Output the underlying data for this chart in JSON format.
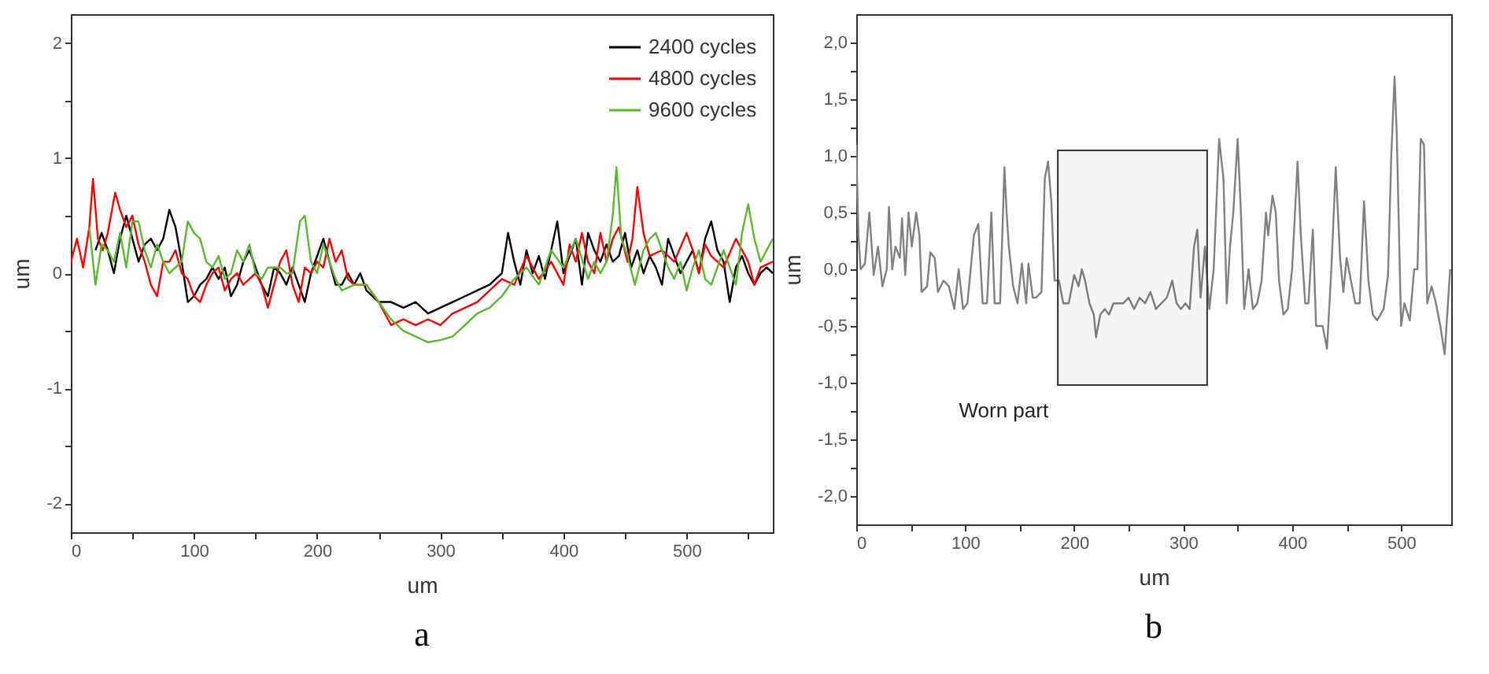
{
  "chart_data": [
    {
      "type": "line",
      "title": "a",
      "xlabel": "um",
      "ylabel": "um",
      "xlim": [
        0,
        570
      ],
      "ylim": [
        -2.25,
        2.25
      ],
      "xticks": [
        0,
        {
          "value": 50,
          "label": null
        },
        100,
        {
          "value": 150,
          "label": null
        },
        200,
        {
          "value": 250,
          "label": null
        },
        300,
        {
          "value": 350,
          "label": null
        },
        400,
        {
          "value": 450,
          "label": null
        },
        500,
        {
          "value": 550,
          "label": null
        }
      ],
      "yticks": [
        -2,
        {
          "value": -1.5,
          "label": null
        },
        -1,
        {
          "value": -0.5,
          "label": null
        },
        0,
        {
          "value": 0.5,
          "label": null
        },
        1,
        {
          "value": 1.5,
          "label": null
        },
        2
      ],
      "legend": "top right",
      "grid": false,
      "marker": "none",
      "line_style": "solid",
      "series": [
        {
          "name": "2400 cycles",
          "color": "#000000",
          "x": [
            20,
            25,
            30,
            35,
            40,
            45,
            50,
            55,
            60,
            65,
            70,
            75,
            80,
            85,
            90,
            95,
            100,
            105,
            110,
            115,
            120,
            125,
            130,
            135,
            140,
            145,
            150,
            155,
            160,
            165,
            170,
            175,
            180,
            185,
            190,
            195,
            200,
            205,
            210,
            215,
            220,
            225,
            230,
            235,
            240,
            250,
            260,
            270,
            280,
            290,
            300,
            310,
            320,
            330,
            340,
            350,
            355,
            360,
            365,
            370,
            375,
            380,
            385,
            390,
            395,
            400,
            405,
            410,
            415,
            420,
            425,
            430,
            435,
            440,
            445,
            450,
            455,
            460,
            465,
            470,
            475,
            480,
            485,
            490,
            495,
            500,
            505,
            510,
            515,
            520,
            525,
            530,
            535,
            540,
            545,
            550,
            555,
            560,
            565,
            570
          ],
          "values": [
            0.2,
            0.35,
            0.2,
            0.0,
            0.3,
            0.5,
            0.3,
            0.1,
            0.25,
            0.3,
            0.2,
            0.3,
            0.55,
            0.4,
            0.1,
            -0.25,
            -0.2,
            -0.1,
            -0.05,
            0.05,
            -0.05,
            0.05,
            -0.2,
            -0.1,
            0.1,
            0.2,
            0.05,
            -0.1,
            -0.2,
            0.05,
            0.0,
            -0.1,
            0.05,
            -0.1,
            -0.25,
            0.0,
            0.15,
            0.3,
            0.1,
            -0.1,
            -0.1,
            0.0,
            -0.1,
            0.0,
            -0.15,
            -0.25,
            -0.25,
            -0.3,
            -0.25,
            -0.35,
            -0.3,
            -0.25,
            -0.2,
            -0.15,
            -0.1,
            0.0,
            0.35,
            0.1,
            -0.1,
            0.2,
            0.0,
            0.15,
            -0.05,
            0.2,
            0.45,
            0.0,
            0.15,
            0.3,
            -0.1,
            0.35,
            0.2,
            0.1,
            0.25,
            0.1,
            0.15,
            0.35,
            0.05,
            0.2,
            0.0,
            0.15,
            0.05,
            -0.1,
            0.3,
            0.15,
            0.0,
            0.1,
            0.2,
            0.0,
            0.3,
            0.45,
            0.2,
            0.1,
            -0.25,
            0.05,
            0.15,
            0.0,
            -0.1,
            0.0,
            0.05,
            0.0
          ]
        },
        {
          "name": "4800 cycles",
          "color": "#ff0000",
          "x": [
            0,
            5,
            10,
            15,
            18,
            22,
            26,
            30,
            36,
            40,
            45,
            50,
            55,
            60,
            65,
            70,
            75,
            80,
            85,
            90,
            95,
            100,
            105,
            110,
            115,
            120,
            125,
            130,
            135,
            140,
            150,
            155,
            160,
            165,
            170,
            175,
            180,
            185,
            190,
            195,
            200,
            205,
            210,
            215,
            220,
            225,
            230,
            240,
            250,
            260,
            270,
            280,
            290,
            300,
            310,
            320,
            330,
            340,
            350,
            360,
            370,
            380,
            390,
            400,
            405,
            410,
            415,
            420,
            425,
            430,
            435,
            440,
            445,
            452,
            456,
            460,
            465,
            470,
            480,
            490,
            500,
            505,
            510,
            515,
            520,
            530,
            540,
            550,
            555,
            560,
            570
          ],
          "values": [
            0.1,
            0.3,
            0.05,
            0.4,
            0.82,
            0.3,
            0.2,
            0.35,
            0.7,
            0.55,
            0.4,
            0.5,
            0.25,
            0.1,
            -0.1,
            -0.2,
            0.1,
            0.1,
            0.2,
            0.0,
            -0.05,
            -0.2,
            -0.25,
            -0.1,
            0.0,
            0.05,
            -0.15,
            -0.05,
            0.0,
            -0.1,
            0.0,
            -0.1,
            -0.3,
            -0.1,
            0.1,
            0.2,
            -0.1,
            -0.25,
            0.05,
            0.0,
            0.1,
            0.05,
            0.3,
            0.1,
            0.2,
            -0.05,
            -0.1,
            -0.1,
            -0.25,
            -0.45,
            -0.4,
            -0.45,
            -0.4,
            -0.45,
            -0.35,
            -0.3,
            -0.25,
            -0.15,
            -0.05,
            -0.1,
            0.15,
            -0.05,
            0.1,
            -0.1,
            0.25,
            0.1,
            0.35,
            0.1,
            0.0,
            0.35,
            0.1,
            0.3,
            0.4,
            0.1,
            0.3,
            0.75,
            0.35,
            0.15,
            0.2,
            0.1,
            0.35,
            0.2,
            0.0,
            0.25,
            0.15,
            0.05,
            0.3,
            0.1,
            -0.1,
            0.05,
            0.1
          ]
        },
        {
          "name": "9600 cycles",
          "color": "#5cb82e",
          "x": [
            15,
            20,
            25,
            30,
            35,
            40,
            45,
            50,
            55,
            60,
            65,
            70,
            75,
            80,
            90,
            95,
            100,
            105,
            110,
            115,
            120,
            125,
            130,
            135,
            140,
            145,
            150,
            155,
            160,
            170,
            175,
            180,
            186,
            190,
            195,
            200,
            205,
            210,
            215,
            220,
            230,
            240,
            250,
            260,
            270,
            280,
            290,
            300,
            310,
            320,
            330,
            340,
            350,
            360,
            370,
            380,
            390,
            400,
            410,
            420,
            425,
            430,
            435,
            440,
            443,
            447,
            452,
            458,
            465,
            470,
            475,
            480,
            485,
            490,
            495,
            500,
            505,
            510,
            515,
            520,
            525,
            530,
            535,
            540,
            545,
            550,
            555,
            560,
            565,
            570
          ],
          "values": [
            0.4,
            -0.1,
            0.25,
            0.2,
            0.1,
            0.35,
            0.05,
            0.45,
            0.45,
            0.2,
            0.05,
            0.25,
            0.1,
            0.0,
            0.1,
            0.45,
            0.35,
            0.3,
            0.1,
            0.05,
            0.15,
            -0.05,
            0.0,
            0.2,
            0.1,
            0.25,
            0.0,
            -0.05,
            0.05,
            0.05,
            0.0,
            0.0,
            0.45,
            0.5,
            0.1,
            0.0,
            0.25,
            0.1,
            -0.05,
            -0.15,
            -0.1,
            -0.1,
            -0.25,
            -0.4,
            -0.5,
            -0.55,
            -0.6,
            -0.58,
            -0.55,
            -0.45,
            -0.35,
            -0.3,
            -0.2,
            -0.05,
            0.05,
            -0.1,
            0.2,
            0.05,
            0.3,
            -0.05,
            0.1,
            0.0,
            0.1,
            0.5,
            0.92,
            0.3,
            0.15,
            -0.1,
            0.2,
            0.3,
            0.35,
            0.2,
            0.05,
            -0.05,
            0.1,
            -0.15,
            0.05,
            0.2,
            -0.05,
            -0.1,
            0.05,
            0.2,
            0.05,
            -0.1,
            0.35,
            0.6,
            0.3,
            0.1,
            0.2,
            0.3
          ]
        }
      ]
    },
    {
      "type": "line",
      "title": "b",
      "xlabel": "um",
      "ylabel": "um",
      "xlim": [
        0,
        546
      ],
      "ylim": [
        -2.25,
        2.25
      ],
      "xticks": [
        0,
        {
          "value": 50,
          "label": null
        },
        100,
        {
          "value": 150,
          "label": null
        },
        200,
        {
          "value": 250,
          "label": null
        },
        300,
        {
          "value": 350,
          "label": null
        },
        400,
        {
          "value": 450,
          "label": null
        },
        500
      ],
      "yticks": [
        {
          "value": -2,
          "label": "-2,0"
        },
        {
          "value": -1.75,
          "label": null
        },
        {
          "value": -1.5,
          "label": "-1,5"
        },
        {
          "value": -1.25,
          "label": null
        },
        {
          "value": -1,
          "label": "-1,0"
        },
        {
          "value": -0.75,
          "label": null
        },
        {
          "value": -0.5,
          "label": "-0,5"
        },
        {
          "value": -0.25,
          "label": null
        },
        {
          "value": 0,
          "label": "0,0"
        },
        {
          "value": 0.25,
          "label": null
        },
        {
          "value": 0.5,
          "label": "0,5"
        },
        {
          "value": 0.75,
          "label": null
        },
        {
          "value": 1,
          "label": "1,0"
        },
        {
          "value": 1.25,
          "label": null
        },
        {
          "value": 1.5,
          "label": "1,5"
        },
        {
          "value": 1.75,
          "label": null
        },
        {
          "value": 2,
          "label": "2,0"
        }
      ],
      "grid": false,
      "marker": "none",
      "line_style": "solid",
      "bands": [
        {
          "axis": "x",
          "from": 185,
          "to": 322,
          "label": "Worn part",
          "color": "#333333"
        }
      ],
      "series": [
        {
          "color": "#808080",
          "x": [
            0,
            2,
            4,
            8,
            12,
            16,
            20,
            24,
            28,
            30,
            33,
            36,
            40,
            42,
            45,
            48,
            51,
            55,
            58,
            60,
            65,
            68,
            72,
            75,
            80,
            85,
            90,
            94,
            98,
            102,
            108,
            112,
            116,
            120,
            124,
            127,
            132,
            136,
            138,
            140,
            144,
            148,
            152,
            156,
            158,
            162,
            165,
            170,
            173,
            176,
            179,
            182,
            186,
            190,
            195,
            200,
            204,
            207,
            210,
            214,
            218,
            220,
            224,
            228,
            232,
            236,
            240,
            245,
            250,
            255,
            260,
            265,
            270,
            275,
            280,
            285,
            290,
            294,
            298,
            302,
            306,
            310,
            313,
            316,
            320,
            324,
            328,
            333,
            337,
            340,
            343,
            346,
            350,
            353,
            356,
            360,
            364,
            368,
            372,
            376,
            378,
            382,
            385,
            388,
            392,
            396,
            400,
            405,
            408,
            412,
            415,
            419,
            422,
            428,
            432,
            436,
            440,
            444,
            447,
            450,
            454,
            458,
            462,
            466,
            470,
            474,
            478,
            484,
            488,
            491,
            494,
            496,
            500,
            503,
            508,
            512,
            515,
            518,
            521,
            524,
            528,
            532,
            536,
            540,
            545
          ],
          "values": [
            1.1,
            0.3,
            0.0,
            0.05,
            0.5,
            -0.05,
            0.2,
            -0.15,
            0.0,
            0.55,
            0.0,
            0.2,
            0.1,
            0.45,
            -0.05,
            0.5,
            0.2,
            0.5,
            0.3,
            -0.2,
            -0.15,
            0.15,
            0.1,
            -0.2,
            -0.1,
            -0.15,
            -0.35,
            0.0,
            -0.35,
            -0.3,
            0.3,
            0.4,
            -0.3,
            -0.3,
            0.5,
            -0.3,
            -0.3,
            0.9,
            0.5,
            0.2,
            -0.15,
            -0.3,
            0.05,
            -0.3,
            0.05,
            -0.25,
            -0.25,
            -0.2,
            0.8,
            0.95,
            0.6,
            -0.1,
            -0.1,
            -0.3,
            -0.3,
            -0.05,
            -0.15,
            0.0,
            -0.1,
            -0.3,
            -0.4,
            -0.6,
            -0.4,
            -0.35,
            -0.4,
            -0.3,
            -0.3,
            -0.3,
            -0.25,
            -0.35,
            -0.25,
            -0.3,
            -0.2,
            -0.35,
            -0.3,
            -0.25,
            -0.1,
            -0.3,
            -0.35,
            -0.3,
            -0.35,
            0.2,
            0.35,
            -0.25,
            0.2,
            -0.35,
            0.0,
            1.15,
            0.8,
            -0.3,
            0.2,
            0.5,
            1.15,
            0.5,
            -0.35,
            0.0,
            -0.35,
            -0.3,
            -0.1,
            0.5,
            0.3,
            0.65,
            0.5,
            -0.1,
            -0.4,
            -0.35,
            0.0,
            0.95,
            0.3,
            -0.3,
            -0.3,
            0.35,
            -0.5,
            -0.5,
            -0.7,
            0.0,
            0.9,
            0.1,
            -0.2,
            0.1,
            -0.1,
            -0.3,
            -0.3,
            0.6,
            -0.1,
            -0.4,
            -0.45,
            -0.35,
            -0.05,
            1.0,
            1.7,
            1.2,
            -0.5,
            -0.3,
            -0.45,
            0.0,
            0.0,
            1.15,
            1.1,
            -0.3,
            -0.15,
            -0.3,
            -0.5,
            -0.75,
            0.0
          ]
        }
      ]
    }
  ]
}
